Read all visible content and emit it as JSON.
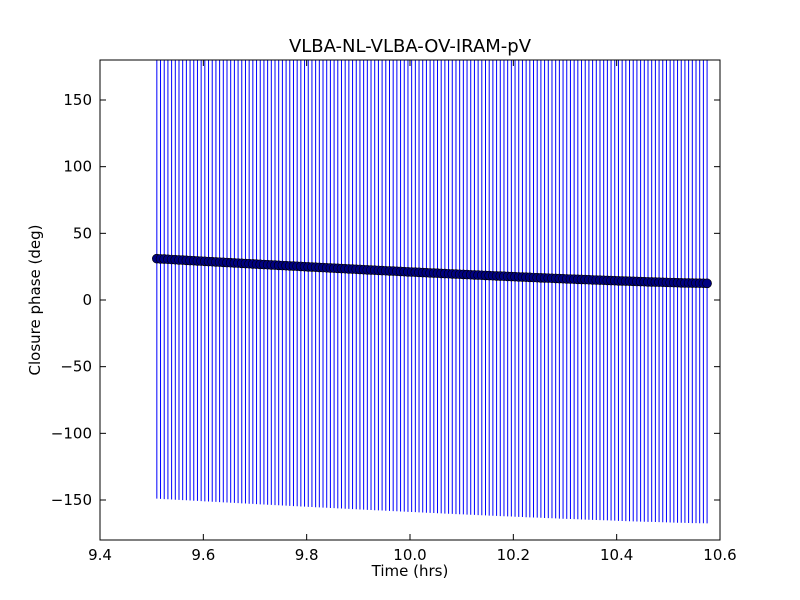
{
  "chart_data": {
    "type": "scatter",
    "title": "VLBA-NL-VLBA-OV-IRAM-pV",
    "xlabel": "Time (hrs)",
    "ylabel": "Closure phase (deg)",
    "xlim": [
      9.4,
      10.6
    ],
    "ylim": [
      -180,
      180
    ],
    "xticks": [
      9.4,
      9.6,
      9.8,
      10.0,
      10.2,
      10.4,
      10.6
    ],
    "xtick_labels": [
      "9.4",
      "9.6",
      "9.8",
      "10.0",
      "10.2",
      "10.4",
      "10.6"
    ],
    "yticks": [
      -150,
      -100,
      -50,
      0,
      50,
      100,
      150
    ],
    "ytick_labels": [
      "−150",
      "−100",
      "−50",
      "0",
      "50",
      "100",
      "150"
    ],
    "grid": false,
    "series": [
      {
        "color": "#0000ff",
        "marker_color": "#000080",
        "error_bar_color": "#0000ff",
        "x_start": 9.51,
        "x_end": 10.575,
        "n_points": 150,
        "y_start": 31,
        "y_end": 12.5,
        "yerr": 180
      }
    ]
  }
}
